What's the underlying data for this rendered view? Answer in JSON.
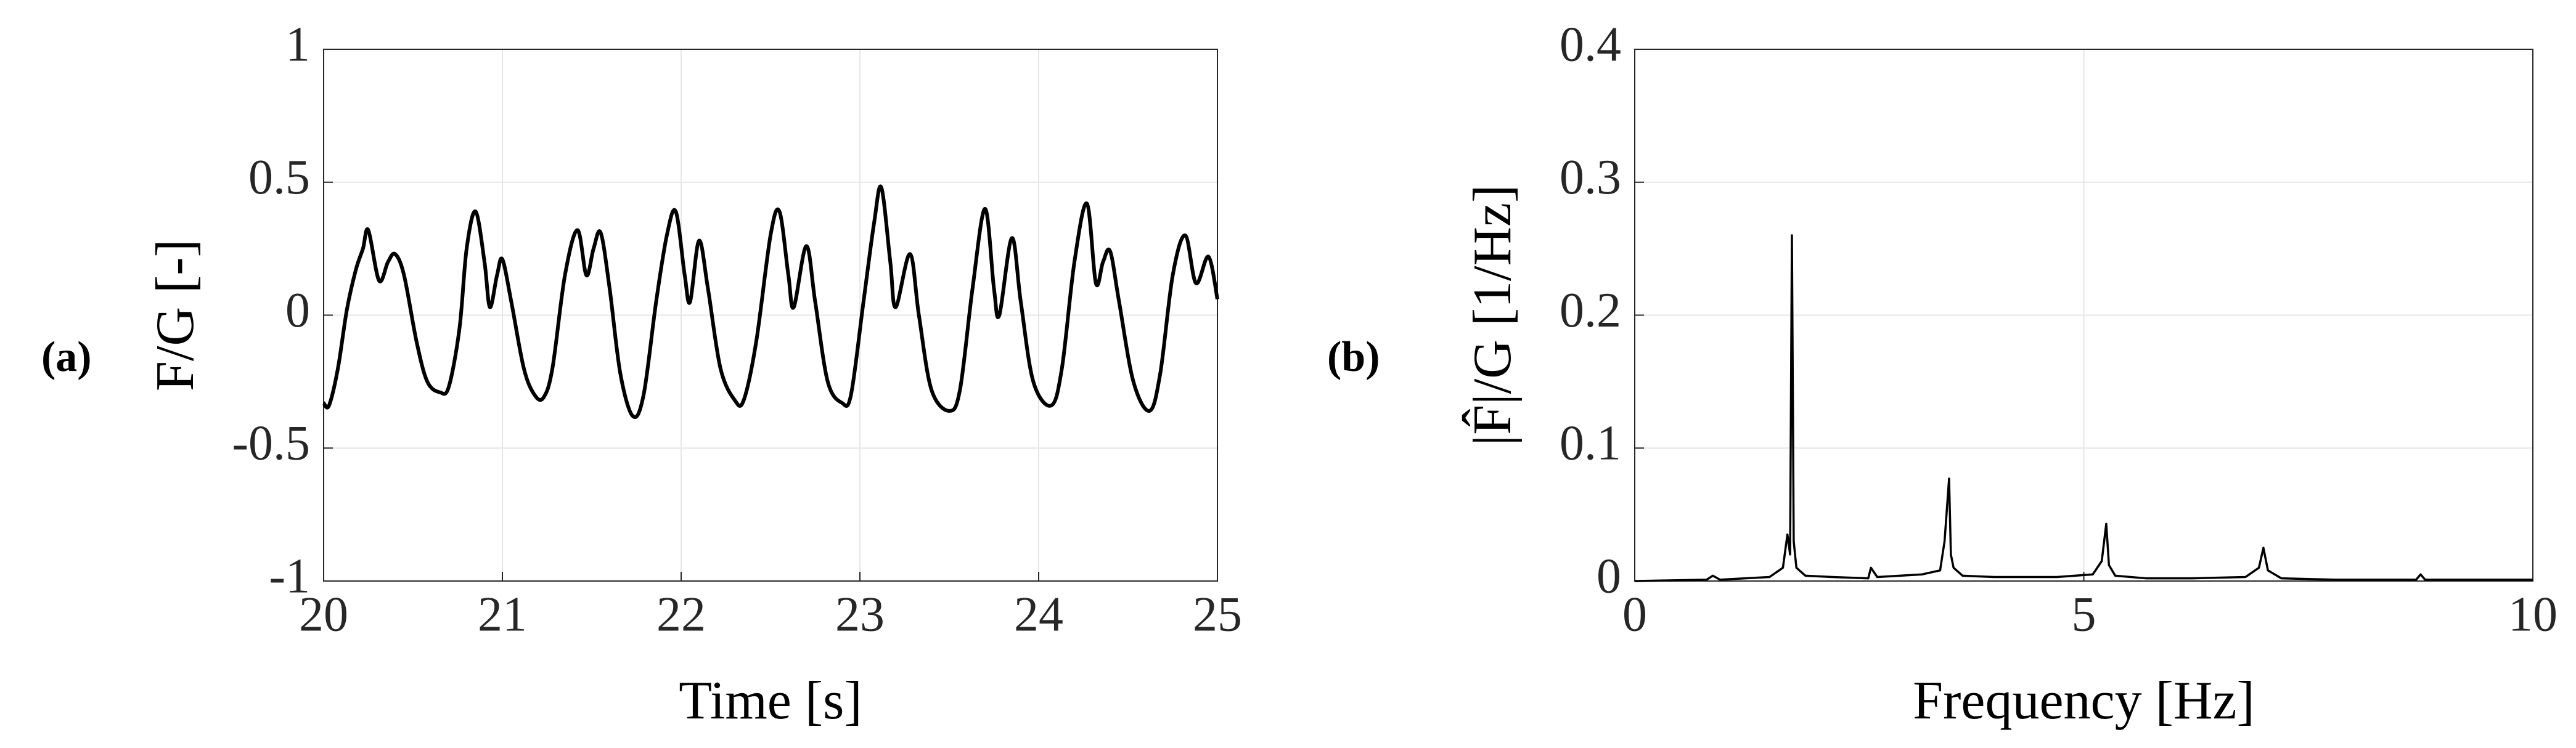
{
  "chart_data": [
    {
      "type": "line",
      "label": "(a)",
      "xlabel": "Time [s]",
      "ylabel": "F/G [-]",
      "xlim": [
        20,
        25
      ],
      "ylim": [
        -1,
        1
      ],
      "xticks": [
        20,
        21,
        22,
        23,
        24,
        25
      ],
      "yticks": [
        -1,
        -0.5,
        0,
        0.5,
        1
      ],
      "grid": true,
      "interpolation": "smooth",
      "x": [
        20.0,
        20.03,
        20.08,
        20.13,
        20.18,
        20.22,
        20.25,
        20.31,
        20.36,
        20.4,
        20.45,
        20.52,
        20.58,
        20.65,
        20.7,
        20.76,
        20.8,
        20.85,
        20.9,
        20.93,
        20.97,
        21.0,
        21.05,
        21.12,
        21.18,
        21.23,
        21.28,
        21.35,
        21.42,
        21.47,
        21.51,
        21.55,
        21.6,
        21.66,
        21.73,
        21.79,
        21.86,
        21.92,
        21.97,
        22.02,
        22.05,
        22.1,
        22.15,
        22.22,
        22.3,
        22.35,
        22.42,
        22.5,
        22.55,
        22.6,
        22.63,
        22.7,
        22.75,
        22.82,
        22.9,
        22.95,
        23.02,
        23.08,
        23.12,
        23.17,
        23.2,
        23.28,
        23.33,
        23.4,
        23.5,
        23.56,
        23.63,
        23.7,
        23.75,
        23.78,
        23.85,
        23.9,
        23.97,
        24.07,
        24.13,
        24.2,
        24.27,
        24.32,
        24.36,
        24.4,
        24.45,
        24.53,
        24.62,
        24.68,
        24.75,
        24.82,
        24.88,
        24.95,
        25.0
      ],
      "series": [
        {
          "color": "#000000",
          "values": [
            -0.33,
            -0.34,
            -0.2,
            0.02,
            0.17,
            0.25,
            0.32,
            0.13,
            0.2,
            0.23,
            0.15,
            -0.1,
            -0.25,
            -0.29,
            -0.27,
            -0.05,
            0.25,
            0.39,
            0.2,
            0.03,
            0.15,
            0.21,
            0.05,
            -0.2,
            -0.3,
            -0.31,
            -0.2,
            0.15,
            0.32,
            0.15,
            0.25,
            0.31,
            0.1,
            -0.22,
            -0.38,
            -0.3,
            0.05,
            0.3,
            0.39,
            0.15,
            0.05,
            0.28,
            0.1,
            -0.2,
            -0.32,
            -0.32,
            -0.1,
            0.3,
            0.39,
            0.15,
            0.03,
            0.26,
            0.05,
            -0.25,
            -0.33,
            -0.3,
            0.05,
            0.35,
            0.48,
            0.2,
            0.03,
            0.23,
            0.0,
            -0.28,
            -0.36,
            -0.28,
            0.1,
            0.4,
            0.1,
            0.0,
            0.29,
            0.05,
            -0.25,
            -0.34,
            -0.2,
            0.2,
            0.42,
            0.12,
            0.2,
            0.24,
            0.05,
            -0.25,
            -0.36,
            -0.22,
            0.15,
            0.3,
            0.12,
            0.22,
            0.06
          ]
        }
      ]
    },
    {
      "type": "line",
      "label": "(b)",
      "xlabel": "Frequency [Hz]",
      "ylabel": "|F̂|/G [1/Hz]",
      "xlim": [
        0,
        10
      ],
      "ylim": [
        0,
        0.4
      ],
      "xticks": [
        0,
        5,
        10
      ],
      "yticks": [
        0,
        0.1,
        0.2,
        0.3,
        0.4
      ],
      "grid": true,
      "interpolation": "linear",
      "x": [
        0,
        0.8,
        0.87,
        0.95,
        1.5,
        1.65,
        1.7,
        1.73,
        1.75,
        1.77,
        1.8,
        1.9,
        2.2,
        2.6,
        2.63,
        2.7,
        3.2,
        3.4,
        3.45,
        3.5,
        3.52,
        3.55,
        3.65,
        4.0,
        4.3,
        4.7,
        5.1,
        5.2,
        5.25,
        5.28,
        5.35,
        5.7,
        6.2,
        6.8,
        6.95,
        7.0,
        7.05,
        7.2,
        7.8,
        8.7,
        8.75,
        8.8,
        9.5,
        10
      ],
      "series": [
        {
          "color": "#000000",
          "values": [
            0,
            0.001,
            0.004,
            0.001,
            0.003,
            0.01,
            0.035,
            0.02,
            0.26,
            0.03,
            0.01,
            0.004,
            0.003,
            0.002,
            0.01,
            0.003,
            0.005,
            0.008,
            0.03,
            0.077,
            0.02,
            0.01,
            0.004,
            0.003,
            0.003,
            0.003,
            0.005,
            0.015,
            0.043,
            0.012,
            0.004,
            0.002,
            0.002,
            0.003,
            0.01,
            0.025,
            0.008,
            0.002,
            0.001,
            0.001,
            0.005,
            0.001,
            0.001,
            0.001
          ]
        }
      ]
    }
  ]
}
